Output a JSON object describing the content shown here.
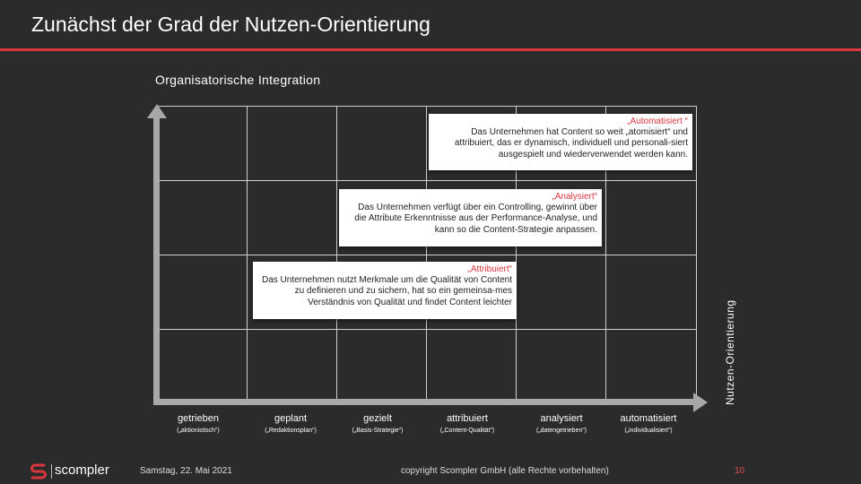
{
  "slide": {
    "title": "Zunächst der Grad der Nutzen-Orientierung",
    "subtitle": "Organisatorische Integration",
    "y_axis_label": "Nutzen-Orientierung"
  },
  "boxes": [
    {
      "title": "„Automatisiert “",
      "body": "Das Unternehmen hat Content so weit „atomisiert“ und attribuiert, das er dynamisch, individuell und personali-siert ausgespielt und wiederverwendet werden kann."
    },
    {
      "title": "„Analysiert“",
      "body": "Das Unternehmen verfügt über ein Controlling, gewinnt über die Attribute Erkenntnisse aus der Performance-Analyse, und kann so die Content-Strategie anpassen."
    },
    {
      "title": "„Attribuiert“",
      "body": "Das Unternehmen nutzt Merkmale um die Qualität von Content zu definieren und zu sichern, hat so ein gemeinsa-mes Verständnis von Qualität und findet Content leichter"
    }
  ],
  "stages": [
    {
      "label": "getrieben",
      "sub": "(„aktionistisch“)"
    },
    {
      "label": "geplant",
      "sub": "(„Redaktionsplan“)"
    },
    {
      "label": "gezielt",
      "sub": "(„Basis-Strategie“)"
    },
    {
      "label": "attribuiert",
      "sub": "(„Content-Qualität“)"
    },
    {
      "label": "analysiert",
      "sub": "(„datengetrieben“)"
    },
    {
      "label": "automatisiert",
      "sub": "(„individualisiert“)"
    }
  ],
  "footer": {
    "logo_text": "scompler",
    "date": "Samstag, 22. Mai 2021",
    "copyright": "copyright Scompler GmbH (alle Rechte vorbehalten)",
    "page_number": "10"
  },
  "colors": {
    "background": "#2b2b2b",
    "accent": "#d9363e",
    "axis": "#a8a8a8"
  }
}
